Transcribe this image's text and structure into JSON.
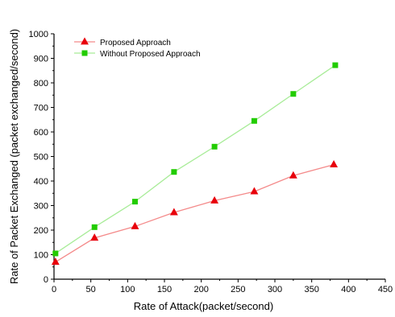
{
  "chart_data": {
    "type": "line",
    "title": "",
    "xlabel": "Rate of Attack(packet/second)",
    "ylabel": "Rate of Packet Exchanged (packet exchanged/second)",
    "xlim": [
      0,
      450
    ],
    "ylim": [
      0,
      1000
    ],
    "xticks": [
      0,
      50,
      100,
      150,
      200,
      250,
      300,
      350,
      400,
      450
    ],
    "yticks": [
      0,
      100,
      200,
      300,
      400,
      500,
      600,
      700,
      800,
      900,
      1000
    ],
    "grid": false,
    "legend_position": "top-left",
    "series": [
      {
        "name": "Proposed Approach",
        "color": "#e8000b",
        "line_color": "#f48a8a",
        "marker": "triangle",
        "x": [
          2,
          55,
          110,
          163,
          218,
          272,
          325,
          380
        ],
        "y": [
          70,
          168,
          215,
          272,
          320,
          357,
          422,
          467
        ]
      },
      {
        "name": "Without Proposed Approach",
        "color": "#22cc00",
        "line_color": "#a8ec98",
        "marker": "square",
        "x": [
          2,
          55,
          110,
          163,
          218,
          272,
          325,
          382
        ],
        "y": [
          105,
          212,
          316,
          437,
          540,
          645,
          755,
          872
        ]
      }
    ]
  }
}
